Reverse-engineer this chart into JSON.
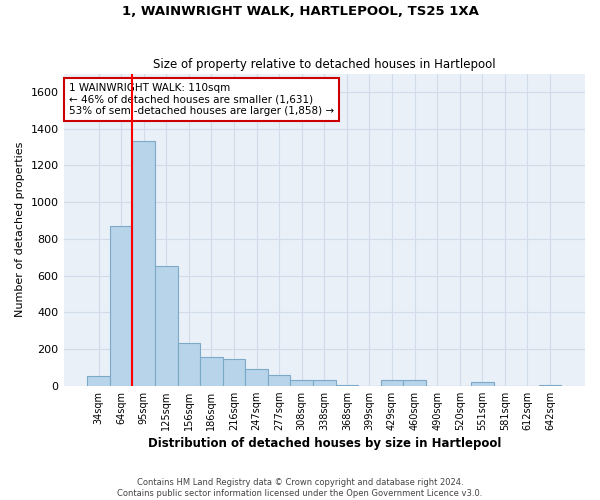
{
  "title": "1, WAINWRIGHT WALK, HARTLEPOOL, TS25 1XA",
  "subtitle": "Size of property relative to detached houses in Hartlepool",
  "xlabel": "Distribution of detached houses by size in Hartlepool",
  "ylabel": "Number of detached properties",
  "categories": [
    "34sqm",
    "64sqm",
    "95sqm",
    "125sqm",
    "156sqm",
    "186sqm",
    "216sqm",
    "247sqm",
    "277sqm",
    "308sqm",
    "338sqm",
    "368sqm",
    "399sqm",
    "429sqm",
    "460sqm",
    "490sqm",
    "520sqm",
    "551sqm",
    "581sqm",
    "612sqm",
    "642sqm"
  ],
  "values": [
    55,
    870,
    1330,
    650,
    235,
    155,
    145,
    90,
    60,
    30,
    30,
    5,
    0,
    30,
    30,
    0,
    0,
    20,
    0,
    0,
    5
  ],
  "bar_color": "#b8d4ea",
  "bar_edge_color": "#7aaac8",
  "background_color": "#eaf0f8",
  "grid_color": "#d0dce8",
  "property_line_x": 1.5,
  "property_value": "110sqm",
  "pct_smaller": 46,
  "count_smaller": 1631,
  "pct_larger_semi": 53,
  "count_larger_semi": 1858,
  "annotation_box_color": "#cc0000",
  "ylim": [
    0,
    1700
  ],
  "yticks": [
    0,
    200,
    400,
    600,
    800,
    1000,
    1200,
    1400,
    1600
  ],
  "footer_line1": "Contains HM Land Registry data © Crown copyright and database right 2024.",
  "footer_line2": "Contains public sector information licensed under the Open Government Licence v3.0."
}
